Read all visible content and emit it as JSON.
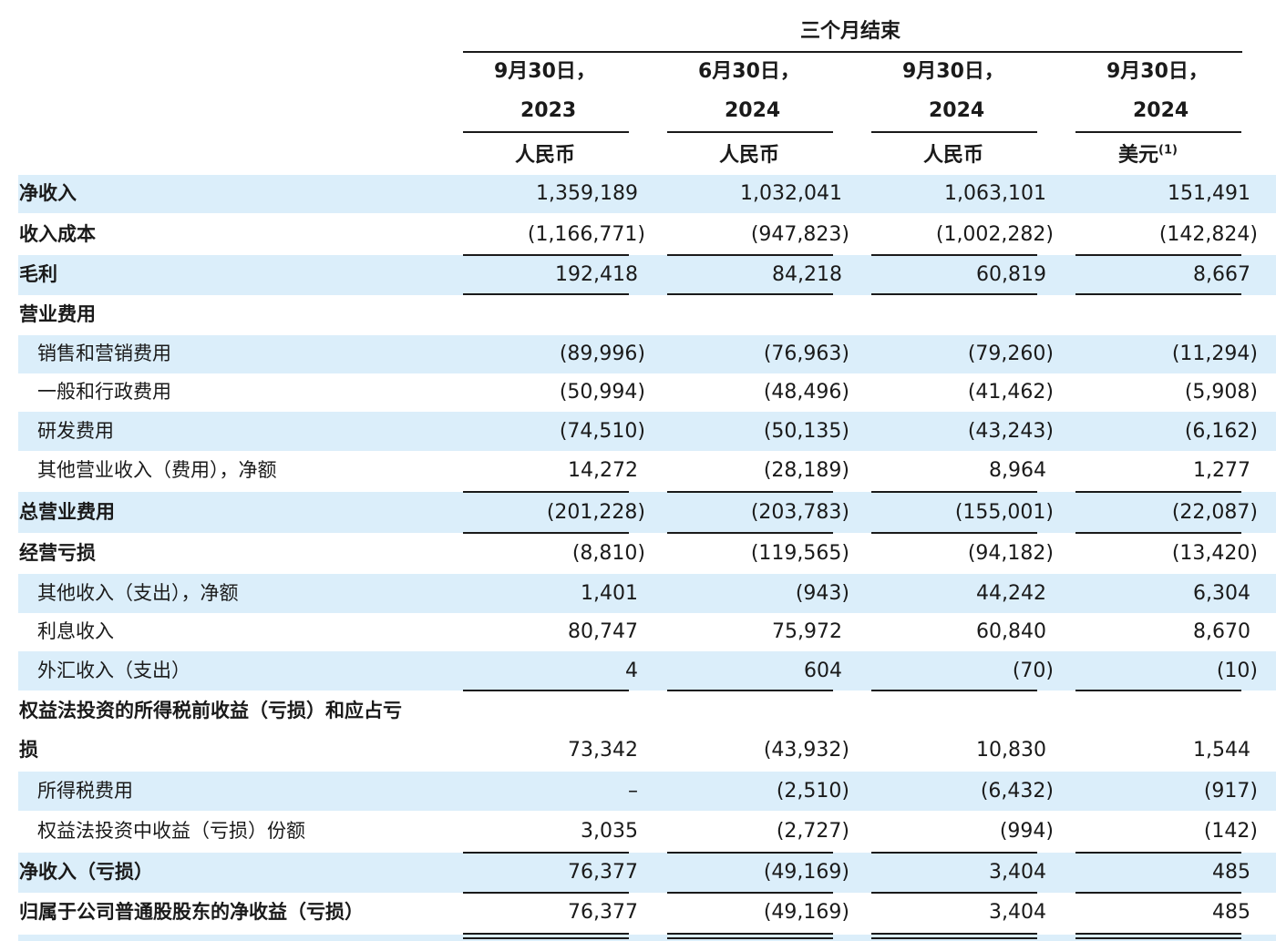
{
  "header": {
    "period_title": "三个月结束",
    "columns": [
      {
        "date": "9月30日，",
        "year": "2023",
        "currency": "人民币",
        "note": ""
      },
      {
        "date": "6月30日，",
        "year": "2024",
        "currency": "人民币",
        "note": ""
      },
      {
        "date": "9月30日，",
        "year": "2024",
        "currency": "人民币",
        "note": ""
      },
      {
        "date": "9月30日，",
        "year": "2024",
        "currency": "美元",
        "note": "(1)"
      }
    ]
  },
  "rows": [
    {
      "label": "净收入",
      "bold": true,
      "indent": false,
      "values": [
        "1,359,189",
        "1,032,041",
        "1,063,101",
        "151,491"
      ]
    },
    {
      "label": "收入成本",
      "bold": true,
      "indent": false,
      "values": [
        "(1,166,771)",
        "(947,823)",
        "(1,002,282)",
        "(142,824)"
      ]
    },
    {
      "label": "毛利",
      "bold": true,
      "indent": false,
      "values": [
        "192,418",
        "84,218",
        "60,819",
        "8,667"
      ]
    },
    {
      "label": "营业费用",
      "bold": true,
      "indent": false,
      "values": [
        "",
        "",
        "",
        ""
      ]
    },
    {
      "label": "销售和营销费用",
      "bold": false,
      "indent": true,
      "values": [
        "(89,996)",
        "(76,963)",
        "(79,260)",
        "(11,294)"
      ]
    },
    {
      "label": "一般和行政费用",
      "bold": false,
      "indent": true,
      "values": [
        "(50,994)",
        "(48,496)",
        "(41,462)",
        "(5,908)"
      ]
    },
    {
      "label": "研发费用",
      "bold": false,
      "indent": true,
      "values": [
        "(74,510)",
        "(50,135)",
        "(43,243)",
        "(6,162)"
      ]
    },
    {
      "label": "其他营业收入（费用），净额",
      "bold": false,
      "indent": true,
      "values": [
        "14,272",
        "(28,189)",
        "8,964",
        "1,277"
      ]
    },
    {
      "label": "总营业费用",
      "bold": true,
      "indent": false,
      "values": [
        "(201,228)",
        "(203,783)",
        "(155,001)",
        "(22,087)"
      ]
    },
    {
      "label": "经营亏损",
      "bold": true,
      "indent": false,
      "values": [
        "(8,810)",
        "(119,565)",
        "(94,182)",
        "(13,420)"
      ]
    },
    {
      "label": "其他收入（支出），净额",
      "bold": false,
      "indent": true,
      "values": [
        "1,401",
        "(943)",
        "44,242",
        "6,304"
      ]
    },
    {
      "label": "利息收入",
      "bold": false,
      "indent": true,
      "values": [
        "80,747",
        "75,972",
        "60,840",
        "8,670"
      ]
    },
    {
      "label": "外汇收入（支出）",
      "bold": false,
      "indent": true,
      "values": [
        "4",
        "604",
        "(70)",
        "(10)"
      ]
    },
    {
      "label": "权益法投资的所得税前收益（亏损）和应占亏",
      "label_cont": "损",
      "bold": true,
      "indent": false,
      "values": [
        "73,342",
        "(43,932)",
        "10,830",
        "1,544"
      ]
    },
    {
      "label": "所得税费用",
      "bold": false,
      "indent": true,
      "values": [
        "–",
        "(2,510)",
        "(6,432)",
        "(917)"
      ]
    },
    {
      "label": "权益法投资中收益（亏损）份额",
      "bold": false,
      "indent": true,
      "values": [
        "3,035",
        "(2,727)",
        "(994)",
        "(142)"
      ]
    },
    {
      "label": "净收入（亏损）",
      "bold": true,
      "indent": false,
      "values": [
        "76,377",
        "(49,169)",
        "3,404",
        "485"
      ]
    },
    {
      "label": "归属于公司普通股股东的净收益（亏损）",
      "bold": true,
      "indent": false,
      "values": [
        "76,377",
        "(49,169)",
        "3,404",
        "485"
      ]
    }
  ]
}
